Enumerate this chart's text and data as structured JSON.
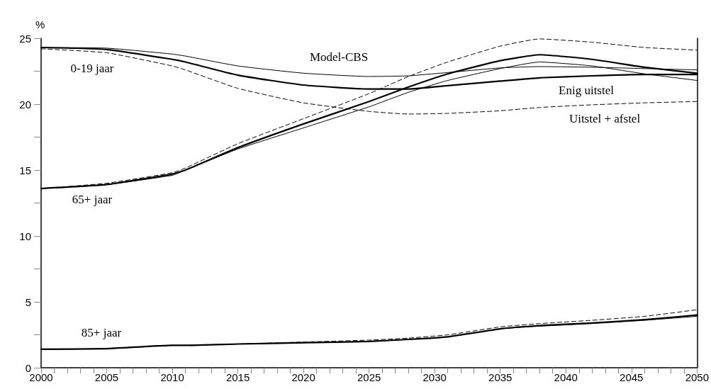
{
  "chart_data": {
    "type": "line",
    "ylabel": "%",
    "x": [
      2000,
      2005,
      2010,
      2011,
      2015,
      2020,
      2025,
      2028,
      2031,
      2035,
      2038,
      2042,
      2046,
      2050
    ],
    "series": [
      {
        "color": "#000000",
        "line_style": "solid",
        "values": [
          24.3,
          24.25,
          23.8,
          23.65,
          22.9,
          22.35,
          22.1,
          22.15,
          22.4,
          22.75,
          22.85,
          22.8,
          22.7,
          22.6
        ]
      },
      {
        "color": "#000000",
        "line_style": "solid",
        "values": [
          24.3,
          24.15,
          23.4,
          23.2,
          22.2,
          21.45,
          21.15,
          21.15,
          21.4,
          21.75,
          22.0,
          22.15,
          22.25,
          22.25
        ]
      },
      {
        "color": "#000000",
        "line_style": "dashed",
        "values": [
          24.2,
          23.9,
          22.9,
          22.6,
          21.2,
          20.1,
          19.45,
          19.25,
          19.3,
          19.5,
          19.75,
          19.95,
          20.1,
          20.2
        ]
      },
      {
        "color": "#000000",
        "line_style": "solid",
        "values": [
          13.6,
          13.9,
          14.6,
          15.0,
          16.6,
          18.2,
          19.8,
          20.9,
          21.8,
          22.7,
          23.2,
          22.9,
          22.3,
          21.8
        ]
      },
      {
        "color": "#000000",
        "line_style": "solid",
        "values": [
          13.6,
          13.9,
          14.7,
          15.0,
          16.7,
          18.5,
          20.2,
          21.3,
          22.3,
          23.3,
          23.75,
          23.4,
          22.8,
          22.35
        ]
      },
      {
        "color": "#000000",
        "line_style": "dashed",
        "values": [
          13.6,
          14.0,
          14.8,
          15.15,
          17.0,
          18.9,
          20.8,
          22.1,
          23.2,
          24.4,
          24.95,
          24.7,
          24.3,
          24.1
        ]
      },
      {
        "color": "#000000",
        "line_style": "solid",
        "values": [
          1.4,
          1.45,
          1.7,
          1.7,
          1.8,
          1.9,
          2.0,
          2.15,
          2.35,
          2.95,
          3.15,
          3.35,
          3.6,
          3.9
        ]
      },
      {
        "color": "#000000",
        "line_style": "solid",
        "values": [
          1.4,
          1.45,
          1.7,
          1.7,
          1.8,
          1.9,
          2.0,
          2.15,
          2.35,
          2.95,
          3.2,
          3.4,
          3.65,
          4.0
        ]
      },
      {
        "color": "#000000",
        "line_style": "dashed",
        "values": [
          1.4,
          1.45,
          1.7,
          1.7,
          1.8,
          1.95,
          2.1,
          2.25,
          2.5,
          3.1,
          3.35,
          3.6,
          3.9,
          4.4
        ]
      }
    ],
    "xlim": [
      2000,
      2050
    ],
    "xticks": [
      2000,
      {
        "value": 2001,
        "label": null
      },
      {
        "value": 2002,
        "label": null
      },
      {
        "value": 2003,
        "label": null
      },
      {
        "value": 2004,
        "label": null
      },
      2005,
      {
        "value": 2006,
        "label": null
      },
      {
        "value": 2007,
        "label": null
      },
      {
        "value": 2008,
        "label": null
      },
      {
        "value": 2009,
        "label": null
      },
      2010,
      {
        "value": 2011,
        "label": null
      },
      {
        "value": 2012,
        "label": null
      },
      {
        "value": 2013,
        "label": null
      },
      {
        "value": 2014,
        "label": null
      },
      2015,
      {
        "value": 2016,
        "label": null
      },
      {
        "value": 2017,
        "label": null
      },
      {
        "value": 2018,
        "label": null
      },
      {
        "value": 2019,
        "label": null
      },
      2020,
      {
        "value": 2021,
        "label": null
      },
      {
        "value": 2022,
        "label": null
      },
      {
        "value": 2023,
        "label": null
      },
      {
        "value": 2024,
        "label": null
      },
      2025,
      {
        "value": 2026,
        "label": null
      },
      {
        "value": 2027,
        "label": null
      },
      {
        "value": 2028,
        "label": null
      },
      {
        "value": 2029,
        "label": null
      },
      2030,
      {
        "value": 2031,
        "label": null
      },
      {
        "value": 2032,
        "label": null
      },
      {
        "value": 2033,
        "label": null
      },
      {
        "value": 2034,
        "label": null
      },
      2035,
      {
        "value": 2036,
        "label": null
      },
      {
        "value": 2037,
        "label": null
      },
      {
        "value": 2038,
        "label": null
      },
      {
        "value": 2039,
        "label": null
      },
      2040,
      {
        "value": 2041,
        "label": null
      },
      {
        "value": 2042,
        "label": null
      },
      {
        "value": 2043,
        "label": null
      },
      {
        "value": 2044,
        "label": null
      },
      2045,
      {
        "value": 2046,
        "label": null
      },
      {
        "value": 2047,
        "label": null
      },
      {
        "value": 2048,
        "label": null
      },
      {
        "value": 2049,
        "label": null
      },
      2050
    ],
    "ylim": [
      0,
      25
    ],
    "yticks": [
      0,
      {
        "value": 2.5,
        "label": null
      },
      5,
      {
        "value": 7.5,
        "label": null
      },
      10,
      {
        "value": 12.5,
        "label": null
      },
      15,
      {
        "value": 17.5,
        "label": null
      },
      20,
      {
        "value": 22.5,
        "label": null
      },
      25
    ],
    "grid": false,
    "marker": "none",
    "annotations": [
      "Model-CBS",
      "0-19 jaar",
      "Enig uitstel",
      "Uitstel + afstel",
      "65+ jaar",
      "85+ jaar"
    ]
  }
}
